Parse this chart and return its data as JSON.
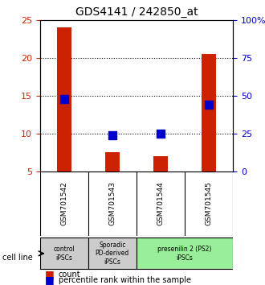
{
  "title": "GDS4141 / 242850_at",
  "samples": [
    "GSM701542",
    "GSM701543",
    "GSM701544",
    "GSM701545"
  ],
  "counts": [
    24.0,
    7.5,
    7.0,
    20.5
  ],
  "percentiles": [
    48.0,
    24.0,
    25.0,
    44.0
  ],
  "ylim_left": [
    5,
    25
  ],
  "ylim_right": [
    0,
    100
  ],
  "yticks_left": [
    5,
    10,
    15,
    20,
    25
  ],
  "yticks_right": [
    0,
    25,
    50,
    75,
    100
  ],
  "bar_color": "#cc2200",
  "dot_color": "#0000cc",
  "bg_color": "#ffffff",
  "plot_bg": "#ffffff",
  "grid_color": "#000000",
  "sample_bg": "#cccccc",
  "group_labels": [
    {
      "text": "control\niPSCs",
      "xstart": 0,
      "xend": 1,
      "color": "#cccccc"
    },
    {
      "text": "Sporadic\nPD-derived\niPSCs",
      "xstart": 1,
      "xend": 2,
      "color": "#cccccc"
    },
    {
      "text": "presenilin 2 (PS2)\niPSCs",
      "xstart": 2,
      "xend": 4,
      "color": "#99ee99"
    }
  ],
  "cell_line_label": "cell line",
  "legend_count_label": "count",
  "legend_percentile_label": "percentile rank within the sample",
  "bar_width": 0.3,
  "dot_size": 60
}
